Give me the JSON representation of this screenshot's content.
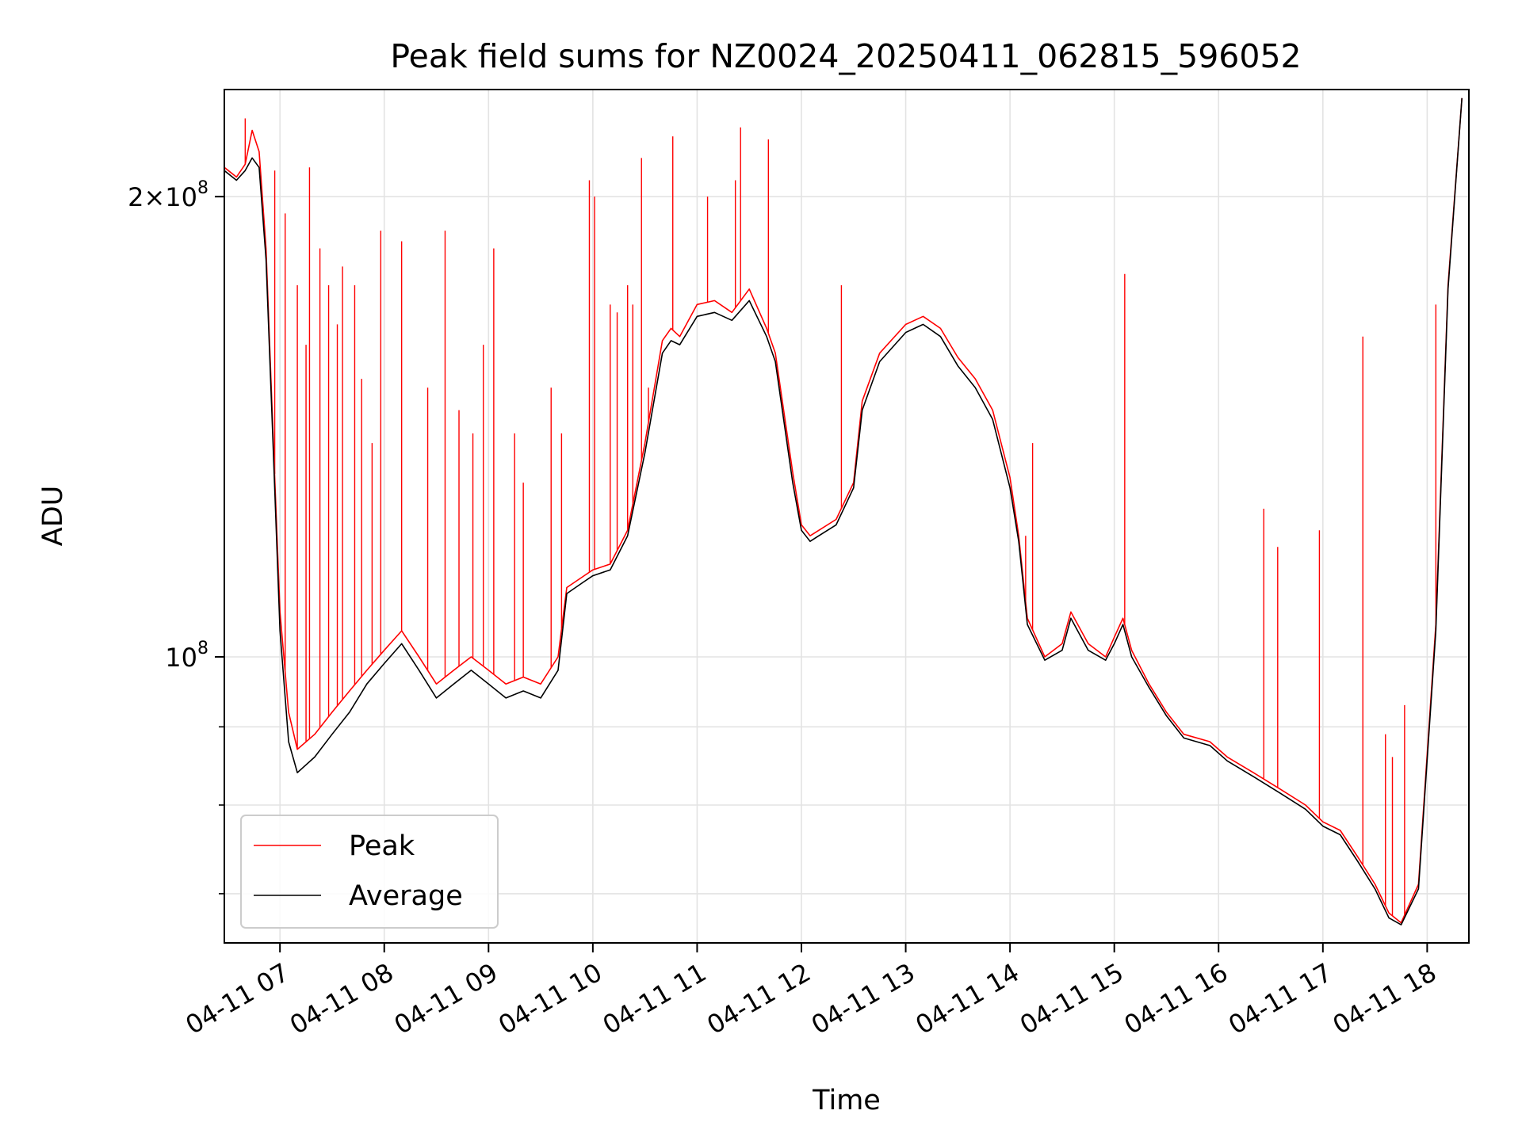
{
  "chart_data": {
    "type": "line",
    "title": "Peak field sums for NZ0024_20250411_062815_596052",
    "xlabel": "Time",
    "ylabel": "ADU",
    "yscale": "log",
    "xlim": [
      "04-11 06:28",
      "04-11 18:24"
    ],
    "ylim": [
      65000000,
      235000000
    ],
    "grid": true,
    "legend_position": "lower-left",
    "x_ticks": [
      "04-11 07",
      "04-11 08",
      "04-11 09",
      "04-11 10",
      "04-11 11",
      "04-11 12",
      "04-11 13",
      "04-11 14",
      "04-11 15",
      "04-11 16",
      "04-11 17",
      "04-11 18"
    ],
    "y_major_ticks": [
      {
        "value": 100000000,
        "mantissa": "",
        "exponent": "8"
      },
      {
        "value": 200000000,
        "mantissa": "2",
        "exponent": "8"
      }
    ],
    "y_minor_ticks": [
      70000000,
      80000000,
      90000000
    ],
    "series": [
      {
        "name": "Peak",
        "color": "#ff0000",
        "x": [
          "04-11 06:28",
          "04-11 06:35",
          "04-11 06:40",
          "04-11 06:44",
          "04-11 06:48",
          "04-11 06:52",
          "04-11 06:56",
          "04-11 07:00",
          "04-11 07:05",
          "04-11 07:10",
          "04-11 07:20",
          "04-11 07:30",
          "04-11 07:40",
          "04-11 07:50",
          "04-11 08:00",
          "04-11 08:10",
          "04-11 08:20",
          "04-11 08:30",
          "04-11 08:40",
          "04-11 08:50",
          "04-11 09:00",
          "04-11 09:10",
          "04-11 09:20",
          "04-11 09:30",
          "04-11 09:40",
          "04-11 09:45",
          "04-11 09:55",
          "04-11 10:00",
          "04-11 10:10",
          "04-11 10:20",
          "04-11 10:30",
          "04-11 10:40",
          "04-11 10:45",
          "04-11 10:50",
          "04-11 11:00",
          "04-11 11:10",
          "04-11 11:20",
          "04-11 11:30",
          "04-11 11:40",
          "04-11 11:45",
          "04-11 11:55",
          "04-11 12:00",
          "04-11 12:05",
          "04-11 12:10",
          "04-11 12:20",
          "04-11 12:30",
          "04-11 12:35",
          "04-11 12:45",
          "04-11 13:00",
          "04-11 13:10",
          "04-11 13:20",
          "04-11 13:30",
          "04-11 13:40",
          "04-11 13:50",
          "04-11 14:00",
          "04-11 14:05",
          "04-11 14:10",
          "04-11 14:20",
          "04-11 14:30",
          "04-11 14:35",
          "04-11 14:45",
          "04-11 14:55",
          "04-11 15:00",
          "04-11 15:05",
          "04-11 15:10",
          "04-11 15:20",
          "04-11 15:30",
          "04-11 15:40",
          "04-11 15:55",
          "04-11 16:05",
          "04-11 16:20",
          "04-11 16:35",
          "04-11 16:50",
          "04-11 17:00",
          "04-11 17:10",
          "04-11 17:20",
          "04-11 17:30",
          "04-11 17:38",
          "04-11 17:45",
          "04-11 17:55",
          "04-11 18:05",
          "04-11 18:12",
          "04-11 18:20"
        ],
        "values": [
          209000000,
          206000000,
          210000000,
          221000000,
          214000000,
          185000000,
          140000000,
          107000000,
          92000000,
          87000000,
          89000000,
          92000000,
          95000000,
          98000000,
          101000000,
          104000000,
          100000000,
          96000000,
          98000000,
          100000000,
          98000000,
          96000000,
          97000000,
          96000000,
          100000000,
          111000000,
          113000000,
          114000000,
          115000000,
          121000000,
          138000000,
          161000000,
          164000000,
          162000000,
          170000000,
          171000000,
          168000000,
          174000000,
          164000000,
          158000000,
          132000000,
          122000000,
          120000000,
          121000000,
          123000000,
          130000000,
          147000000,
          158000000,
          165000000,
          167000000,
          164000000,
          157000000,
          152000000,
          145000000,
          131000000,
          120000000,
          106000000,
          100000000,
          102000000,
          107000000,
          102000000,
          100000000,
          103000000,
          106000000,
          101000000,
          96000000,
          92000000,
          89000000,
          88000000,
          86000000,
          84000000,
          82000000,
          80000000,
          78000000,
          77000000,
          74000000,
          71000000,
          68000000,
          67000000,
          71000000,
          105000000,
          175000000,
          232000000
        ],
        "spikes": [
          {
            "x": "04-11 06:40",
            "y": 225000000
          },
          {
            "x": "04-11 06:57",
            "y": 208000000
          },
          {
            "x": "04-11 07:03",
            "y": 195000000
          },
          {
            "x": "04-11 07:10",
            "y": 175000000
          },
          {
            "x": "04-11 07:15",
            "y": 160000000
          },
          {
            "x": "04-11 07:17",
            "y": 209000000
          },
          {
            "x": "04-11 07:23",
            "y": 185000000
          },
          {
            "x": "04-11 07:28",
            "y": 175000000
          },
          {
            "x": "04-11 07:33",
            "y": 165000000
          },
          {
            "x": "04-11 07:36",
            "y": 180000000
          },
          {
            "x": "04-11 07:43",
            "y": 175000000
          },
          {
            "x": "04-11 07:47",
            "y": 152000000
          },
          {
            "x": "04-11 07:53",
            "y": 138000000
          },
          {
            "x": "04-11 07:58",
            "y": 190000000
          },
          {
            "x": "04-11 08:10",
            "y": 187000000
          },
          {
            "x": "04-11 08:25",
            "y": 150000000
          },
          {
            "x": "04-11 08:35",
            "y": 190000000
          },
          {
            "x": "04-11 08:43",
            "y": 145000000
          },
          {
            "x": "04-11 08:51",
            "y": 140000000
          },
          {
            "x": "04-11 08:57",
            "y": 160000000
          },
          {
            "x": "04-11 09:03",
            "y": 185000000
          },
          {
            "x": "04-11 09:15",
            "y": 140000000
          },
          {
            "x": "04-11 09:20",
            "y": 130000000
          },
          {
            "x": "04-11 09:36",
            "y": 150000000
          },
          {
            "x": "04-11 09:42",
            "y": 140000000
          },
          {
            "x": "04-11 09:58",
            "y": 205000000
          },
          {
            "x": "04-11 10:01",
            "y": 200000000
          },
          {
            "x": "04-11 10:10",
            "y": 170000000
          },
          {
            "x": "04-11 10:14",
            "y": 168000000
          },
          {
            "x": "04-11 10:20",
            "y": 175000000
          },
          {
            "x": "04-11 10:23",
            "y": 170000000
          },
          {
            "x": "04-11 10:28",
            "y": 212000000
          },
          {
            "x": "04-11 10:32",
            "y": 150000000
          },
          {
            "x": "04-11 10:46",
            "y": 219000000
          },
          {
            "x": "04-11 11:06",
            "y": 200000000
          },
          {
            "x": "04-11 11:22",
            "y": 205000000
          },
          {
            "x": "04-11 11:25",
            "y": 222000000
          },
          {
            "x": "04-11 11:41",
            "y": 218000000
          },
          {
            "x": "04-11 12:23",
            "y": 175000000
          },
          {
            "x": "04-11 14:13",
            "y": 138000000
          },
          {
            "x": "04-11 14:09",
            "y": 120000000
          },
          {
            "x": "04-11 15:06",
            "y": 178000000
          },
          {
            "x": "04-11 16:26",
            "y": 125000000
          },
          {
            "x": "04-11 16:34",
            "y": 118000000
          },
          {
            "x": "04-11 16:58",
            "y": 121000000
          },
          {
            "x": "04-11 17:23",
            "y": 162000000
          },
          {
            "x": "04-11 17:36",
            "y": 89000000
          },
          {
            "x": "04-11 17:40",
            "y": 86000000
          },
          {
            "x": "04-11 17:47",
            "y": 93000000
          },
          {
            "x": "04-11 18:05",
            "y": 170000000
          }
        ]
      },
      {
        "name": "Average",
        "color": "#000000",
        "x": [
          "04-11 06:28",
          "04-11 06:35",
          "04-11 06:40",
          "04-11 06:44",
          "04-11 06:48",
          "04-11 06:52",
          "04-11 06:56",
          "04-11 07:00",
          "04-11 07:05",
          "04-11 07:10",
          "04-11 07:20",
          "04-11 07:30",
          "04-11 07:40",
          "04-11 07:50",
          "04-11 08:00",
          "04-11 08:10",
          "04-11 08:20",
          "04-11 08:30",
          "04-11 08:40",
          "04-11 08:50",
          "04-11 09:00",
          "04-11 09:10",
          "04-11 09:20",
          "04-11 09:30",
          "04-11 09:40",
          "04-11 09:45",
          "04-11 09:55",
          "04-11 10:00",
          "04-11 10:10",
          "04-11 10:20",
          "04-11 10:30",
          "04-11 10:40",
          "04-11 10:45",
          "04-11 10:50",
          "04-11 11:00",
          "04-11 11:10",
          "04-11 11:20",
          "04-11 11:30",
          "04-11 11:40",
          "04-11 11:45",
          "04-11 11:55",
          "04-11 12:00",
          "04-11 12:05",
          "04-11 12:10",
          "04-11 12:20",
          "04-11 12:30",
          "04-11 12:35",
          "04-11 12:45",
          "04-11 13:00",
          "04-11 13:10",
          "04-11 13:20",
          "04-11 13:30",
          "04-11 13:40",
          "04-11 13:50",
          "04-11 14:00",
          "04-11 14:05",
          "04-11 14:10",
          "04-11 14:20",
          "04-11 14:30",
          "04-11 14:35",
          "04-11 14:45",
          "04-11 14:55",
          "04-11 15:00",
          "04-11 15:05",
          "04-11 15:10",
          "04-11 15:20",
          "04-11 15:30",
          "04-11 15:40",
          "04-11 15:55",
          "04-11 16:05",
          "04-11 16:20",
          "04-11 16:35",
          "04-11 16:50",
          "04-11 17:00",
          "04-11 17:10",
          "04-11 17:20",
          "04-11 17:30",
          "04-11 17:38",
          "04-11 17:45",
          "04-11 17:55",
          "04-11 18:05",
          "04-11 18:12",
          "04-11 18:20"
        ],
        "values": [
          208000000,
          205000000,
          208000000,
          212000000,
          209000000,
          182000000,
          138000000,
          104000000,
          88000000,
          84000000,
          86000000,
          89000000,
          92000000,
          96000000,
          99000000,
          102000000,
          98000000,
          94000000,
          96000000,
          98000000,
          96000000,
          94000000,
          95000000,
          94000000,
          98000000,
          110000000,
          112000000,
          113000000,
          114000000,
          120000000,
          136000000,
          158000000,
          161000000,
          160000000,
          167000000,
          168000000,
          166000000,
          171000000,
          162000000,
          156000000,
          130000000,
          121000000,
          119000000,
          120000000,
          122000000,
          129000000,
          145000000,
          156000000,
          163000000,
          165000000,
          162000000,
          155000000,
          150000000,
          143000000,
          129000000,
          119000000,
          105000000,
          99500000,
          101000000,
          106000000,
          101000000,
          99500000,
          102000000,
          105000000,
          100000000,
          95500000,
          91500000,
          88500000,
          87500000,
          85500000,
          83500000,
          81500000,
          79500000,
          77500000,
          76500000,
          73500000,
          70500000,
          67500000,
          66800000,
          70500000,
          104000000,
          174000000,
          232000000
        ]
      }
    ]
  }
}
